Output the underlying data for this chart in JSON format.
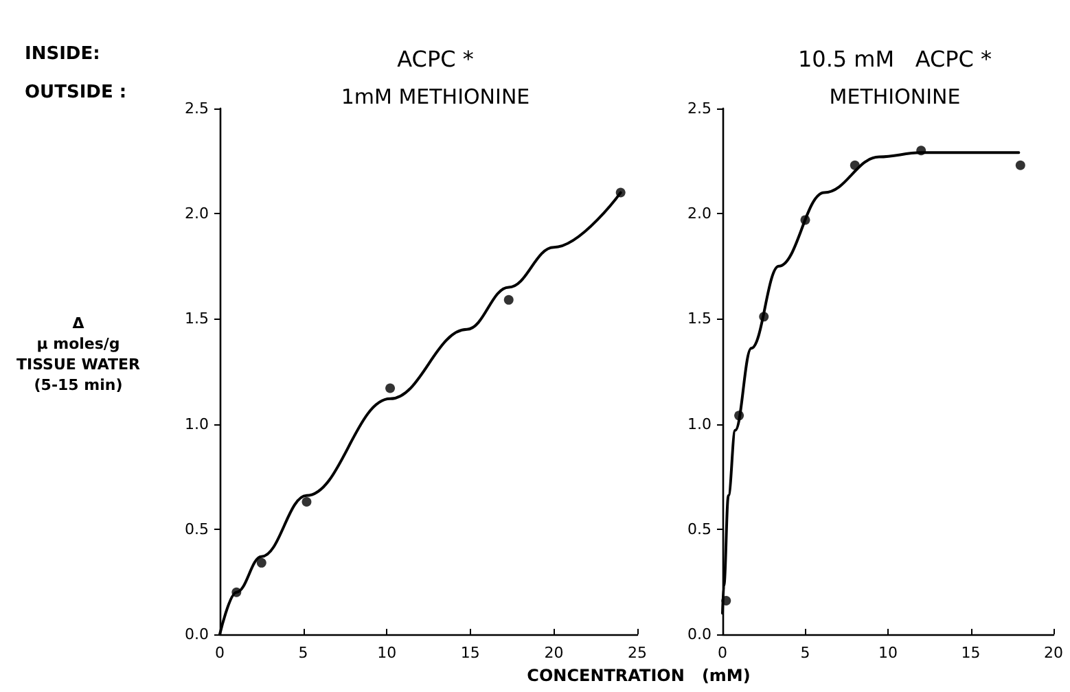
{
  "chart_data": [
    {
      "type": "scatter",
      "title": "ACPC *",
      "subtitle": "1mM METHIONINE",
      "annotations": [
        "INSIDE:",
        "OUTSIDE :"
      ],
      "ylabel": "Δ\nμ moles/g\nTISSUE WATER\n(5-15 min)",
      "xlim": [
        0,
        25
      ],
      "xticks": [
        0,
        5,
        10,
        15,
        20,
        25
      ],
      "ylim": [
        0,
        2.5
      ],
      "yticks": [
        {
          "value": 0,
          "label": "0.0"
        },
        {
          "value": 0.5,
          "label": "0.5"
        },
        {
          "value": 1,
          "label": "1.0"
        },
        {
          "value": 1.5,
          "label": "1.5"
        },
        {
          "value": 2,
          "label": "2.0"
        },
        {
          "value": 2.5,
          "label": "2.5"
        }
      ],
      "grid": false,
      "series": [
        {
          "marker": "circle",
          "color": "#000000",
          "x": [
            1.0,
            2.5,
            5.2,
            10.2,
            17.3,
            24.0
          ],
          "values": [
            0.2,
            0.34,
            0.63,
            1.17,
            1.59,
            2.1
          ]
        },
        {
          "type": "line",
          "marker": "none",
          "color": "#000000",
          "x": [
            0,
            1.0,
            2.5,
            5.2,
            10.2,
            14.8,
            17.3,
            20,
            24.0
          ],
          "values": [
            0,
            0.2,
            0.37,
            0.66,
            1.12,
            1.45,
            1.65,
            1.84,
            2.1
          ]
        }
      ]
    },
    {
      "type": "scatter",
      "title": "10.5 mM   ACPC *",
      "subtitle": "METHIONINE",
      "xlabel": "CONCENTRATION   (mM)",
      "xlim": [
        0,
        20
      ],
      "xticks": [
        0,
        5,
        10,
        15,
        20
      ],
      "ylim": [
        0,
        2.5
      ],
      "yticks": [
        {
          "value": 0,
          "label": "0.0"
        },
        {
          "value": 0.5,
          "label": "0.5"
        },
        {
          "value": 1,
          "label": "1.0"
        },
        {
          "value": 1.5,
          "label": "1.5"
        },
        {
          "value": 2,
          "label": "2.0"
        },
        {
          "value": 2.5,
          "label": "2.5"
        }
      ],
      "grid": false,
      "series": [
        {
          "marker": "circle",
          "color": "#000000",
          "x": [
            0.22,
            1.0,
            2.5,
            5.0,
            8.0,
            12.0,
            18.0
          ],
          "values": [
            0.16,
            1.04,
            1.51,
            1.97,
            2.23,
            2.3,
            2.23
          ]
        },
        {
          "type": "line",
          "marker": "none",
          "color": "#000000",
          "x": [
            0,
            0.08,
            0.36,
            0.77,
            1.74,
            3.4,
            6.15,
            9.46,
            12.0,
            17.9
          ],
          "values": [
            0.1,
            0.23,
            0.66,
            0.97,
            1.36,
            1.75,
            2.1,
            2.27,
            2.29,
            2.29
          ]
        }
      ]
    }
  ]
}
